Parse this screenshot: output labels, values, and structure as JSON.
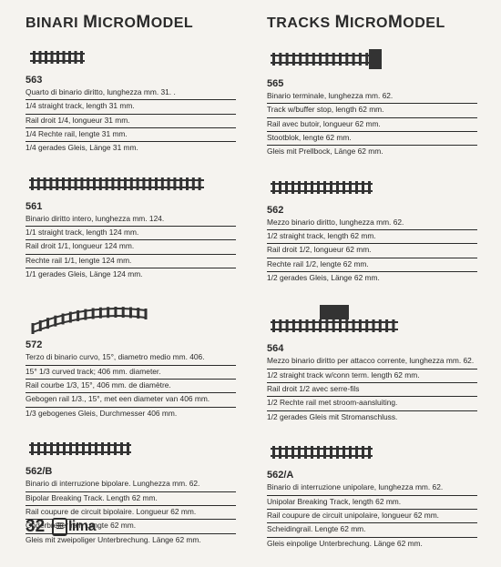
{
  "left": {
    "heading_pre": "BINARI ",
    "heading_m": "M",
    "heading_mid": "ICRO",
    "heading_m2": "M",
    "heading_post": "ODEL",
    "items": [
      {
        "sku": "563",
        "lines": [
          "Quarto di binario diritto, lunghezza mm. 31. .",
          "1/4 straight track, length 31 mm.",
          "Rail droit 1/4, longueur 31 mm.",
          "1/4 Rechte rail, lengte 31 mm.",
          "1/4 gerades Gleis, Länge 31 mm."
        ]
      },
      {
        "sku": "561",
        "lines": [
          "Binario diritto intero, lunghezza mm. 124.",
          "1/1 straight track, length 124 mm.",
          "Rail droit 1/1, longueur 124 mm.",
          "Rechte rail 1/1, lengte 124 mm.",
          "1/1 gerades Gleis, Länge 124 mm."
        ]
      },
      {
        "sku": "572",
        "lines": [
          "Terzo di binario curvo, 15°, diametro medio mm. 406.",
          "15° 1/3 curved track; 406 mm. diameter.",
          "Rail courbe 1/3, 15°, 406 mm. de diamètre.",
          "Gebogen rail 1/3., 15°, met een diameter van 406 mm.",
          "1/3 gebogenes Gleis, Durchmesser 406 mm."
        ]
      },
      {
        "sku": "562/B",
        "lines": [
          "Binario di interruzione bipolare. Lunghezza mm. 62.",
          "Bipolar Breaking Track. Length 62 mm.",
          "Rail coupure de circuit bipolaire. Longueur 62 mm.",
          "Onderbreker rail. Lengte 62 mm.",
          "Gleis mit zweipoliger Unterbrechung. Länge 62 mm."
        ]
      }
    ]
  },
  "right": {
    "heading_pre": "TRACKS ",
    "heading_m": "M",
    "heading_mid": "ICRO",
    "heading_m2": "M",
    "heading_post": "ODEL",
    "items": [
      {
        "sku": "565",
        "lines": [
          "Binario terminale, lunghezza mm. 62.",
          "Track w/buffer stop, length 62 mm.",
          "Rail avec butoir, longueur 62 mm.",
          "Stootblok, lengte 62 mm.",
          "Gleis mit Prellbock, Länge 62 mm."
        ]
      },
      {
        "sku": "562",
        "lines": [
          "Mezzo binario diritto, lunghezza mm. 62.",
          "1/2 straight track, length 62 mm.",
          "Rail droit 1/2, longueur 62 mm.",
          "Rechte rail 1/2, lengte 62 mm.",
          "1/2 gerades Gleis, Länge 62 mm."
        ]
      },
      {
        "sku": "564",
        "lines": [
          "Mezzo binario diritto per attacco corrente, lunghezza mm. 62.",
          "1/2 straight track w/conn term. length 62 mm.",
          "Rail droit 1/2 avec serre-fils",
          "1/2 Rechte rail met stroom-aansluiting.",
          "1/2 gerades Gleis mit Stromanschluss."
        ]
      },
      {
        "sku": "562/A",
        "lines": [
          "Binario di interruzione unipolare, lunghezza mm. 62.",
          "Unipolar Breaking Track, length 62 mm.",
          "Rail coupure de circuit unipolaire, longueur 62 mm.",
          "Scheidingrail. Lengte 62 mm.",
          "Gleis einpolige Unterbrechung. Länge 62 mm."
        ]
      }
    ]
  },
  "page_number": "32",
  "logo": "lima",
  "track_style": {
    "rail_color": "#333333",
    "tie_color": "#3a3a3a"
  }
}
